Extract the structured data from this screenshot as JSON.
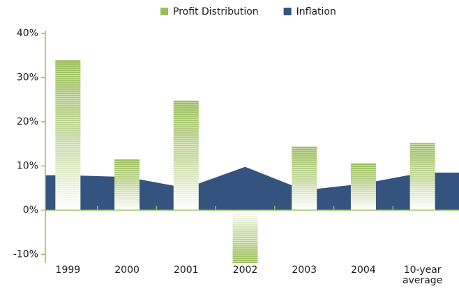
{
  "chart_data": {
    "type": "bar",
    "categories": [
      "1999",
      "2000",
      "2001",
      "2002",
      "2003",
      "2004",
      "10-year average"
    ],
    "series": [
      {
        "name": "Profit Distribution",
        "color": "#9bbf5a",
        "type": "bar",
        "values": [
          34,
          11.5,
          24.8,
          -12,
          14.4,
          10.6,
          15.2
        ]
      },
      {
        "name": "Inflation",
        "color": "#34537f",
        "type": "area",
        "values": [
          7.9,
          7.5,
          5,
          9.8,
          4.5,
          6,
          8.5
        ]
      }
    ],
    "ylim": [
      -12,
      40
    ],
    "yticks": [
      {
        "value": -10,
        "label": "-10%"
      },
      {
        "value": 0,
        "label": "0%"
      },
      {
        "value": 10,
        "label": "10%"
      },
      {
        "value": 20,
        "label": "20%"
      },
      {
        "value": 30,
        "label": "30%"
      },
      {
        "value": 40,
        "label": "40%"
      }
    ],
    "grid": false,
    "legend": "top"
  }
}
